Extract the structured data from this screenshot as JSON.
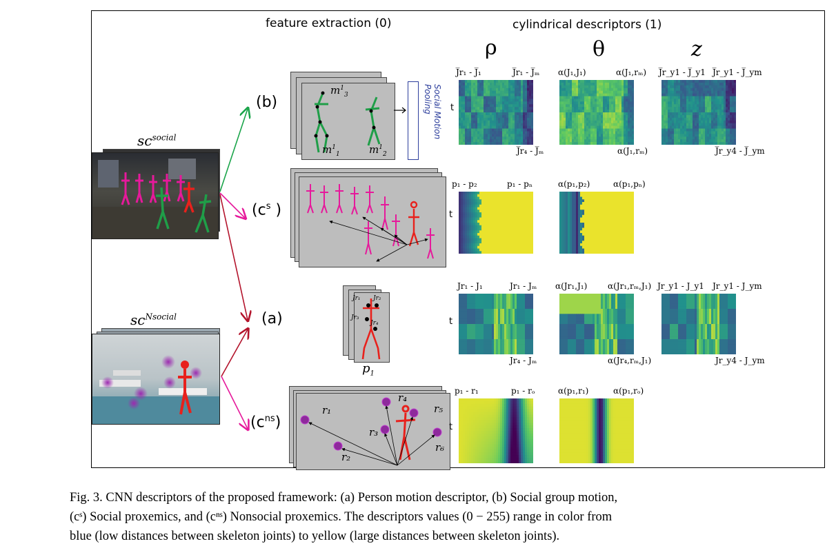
{
  "headers": {
    "feature_extraction": "feature extraction (0)",
    "cylindrical_descriptors": "cylindrical descriptors (1)",
    "rho": "ρ",
    "theta": "θ",
    "z": "z"
  },
  "row_labels": {
    "b": "(b)",
    "cs_prefix": "(c",
    "cs_sup": "s",
    "cs_suffix": " )",
    "a": "(a)",
    "cns_prefix": "(c",
    "cns_sup": "ns",
    "cns_suffix": ")"
  },
  "photos": {
    "social_base": "sc",
    "social_sup": "social",
    "nonsocial_base": "sc",
    "nonsocial_sup": "Nsocial"
  },
  "pooling_label": "Social Motion Pooling",
  "axis_t": "t",
  "row_b": {
    "m3_base": "m",
    "m3_sup": "1",
    "m3_sub": "3",
    "m1_base": "m",
    "m1_sup": "1",
    "m1_sub": "1",
    "m2_base": "m",
    "m2_sup": "1",
    "m2_sub": "2",
    "rho_tl": "J̅r₁ - J̅₁",
    "rho_tr": "J̅r₁ - J̅ₘ",
    "rho_br": "J̅r₄ - J̅ₘ",
    "theta_tl": "α(J₁,J₁)",
    "theta_tr": "α(J₁,rₘ)",
    "theta_br": "α(J₁,rₘ)",
    "z_tl": "J̅r_y1 - J̅_y1",
    "z_tr": "J̅r_y1 - J̅_ym",
    "z_br": "J̅r_y4 - J̅_ym"
  },
  "row_cs": {
    "rho_tl": "p₁ - p₂",
    "rho_tr": "p₁ - pₙ",
    "theta_tl": "α(p₁,p₂)",
    "theta_tr": "α(p₁,pₙ)"
  },
  "row_a": {
    "p1_base": "p",
    "p1_sub": "1",
    "jr1": "Jr₁",
    "jr2": "Jr₂",
    "jr3": "Jr₃",
    "jr4": "Jr₄",
    "rho_tl": "Jr₁ - J₁",
    "rho_tr": "Jr₁ - Jₘ",
    "rho_br": "Jr₄ - Jₘ",
    "theta_tl": "α(Jr₁,J₁)",
    "theta_tr": "α(Jr₁,rₘ,J₁)",
    "theta_br": "α(Jr₄,rₘ,J₁)",
    "z_tl": "Jr_y1 - J_y1",
    "z_tr": "Jr_y1 - J_ym",
    "z_br": "Jr_y4 - J_ym"
  },
  "row_cns": {
    "r1": "r₁",
    "r2": "r₂",
    "r3": "r₃",
    "r4": "r₄",
    "r5": "r₅",
    "r6": "r₆",
    "rho_tl": "p₁ - r₁",
    "rho_tr": "p₁ - rₒ",
    "theta_tl": "α(p₁,r₁)",
    "theta_tr": "α(p₁,rₒ)"
  },
  "caption": {
    "line1": "Fig. 3.  CNN descriptors of the proposed framework: (a) Person motion descriptor, (b) Social group motion,",
    "line2": "(cˢ) Social proxemics, and (cⁿˢ) Nonsocial proxemics. The descriptors values (0 − 255) range in color from",
    "line3": "blue (low distances between skeleton joints) to yellow (large distances between skeleton joints)."
  },
  "colors": {
    "low": "#3b1f6b",
    "mid": "#21918c",
    "high": "#fde725",
    "social_skeleton": "#e6199b",
    "group_skeleton": "#1f9e48",
    "person_skeleton": "#e8211c",
    "arrow_green": "#1aa44a",
    "arrow_red": "#b3132b",
    "arrow_magenta": "#e6199b",
    "object_marker": "#8e2a9c"
  }
}
